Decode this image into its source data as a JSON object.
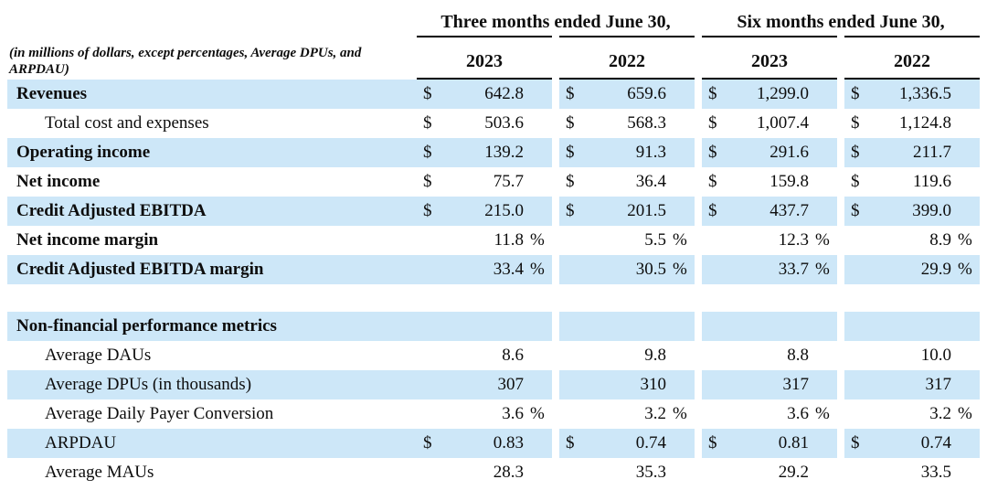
{
  "table": {
    "unit_note": "(in millions of dollars, except percentages, Average DPUs, and ARPDAU)",
    "col_groups": [
      {
        "label": "Three months ended June 30,"
      },
      {
        "label": "Six months ended June 30,"
      }
    ],
    "year_columns": [
      "2023",
      "2022",
      "2023",
      "2022"
    ],
    "rows": [
      {
        "label": "Revenues",
        "bold": true,
        "shaded": true,
        "prefix": "$",
        "values": [
          "642.8",
          "659.6",
          "1,299.0",
          "1,336.5"
        ]
      },
      {
        "label": "Total cost and expenses",
        "indent": true,
        "prefix": "$",
        "values": [
          "503.6",
          "568.3",
          "1,007.4",
          "1,124.8"
        ]
      },
      {
        "label": "Operating income",
        "bold": true,
        "shaded": true,
        "prefix": "$",
        "values": [
          "139.2",
          "91.3",
          "291.6",
          "211.7"
        ]
      },
      {
        "label": "Net income",
        "bold": true,
        "prefix": "$",
        "values": [
          "75.7",
          "36.4",
          "159.8",
          "119.6"
        ]
      },
      {
        "label": "Credit Adjusted EBITDA",
        "bold": true,
        "shaded": true,
        "prefix": "$",
        "values": [
          "215.0",
          "201.5",
          "437.7",
          "399.0"
        ]
      },
      {
        "label": "Net income margin",
        "bold": true,
        "suffix": "%",
        "values": [
          "11.8",
          "5.5",
          "12.3",
          "8.9"
        ]
      },
      {
        "label": "Credit Adjusted EBITDA margin",
        "bold": true,
        "shaded": true,
        "suffix": "%",
        "values": [
          "33.4",
          "30.5",
          "33.7",
          "29.9"
        ]
      },
      {
        "spacer": true
      },
      {
        "label": "Non-financial performance metrics",
        "bold": true,
        "shaded": true,
        "values": [
          "",
          "",
          "",
          ""
        ]
      },
      {
        "label": "Average DAUs",
        "indent": true,
        "values": [
          "8.6",
          "9.8",
          "8.8",
          "10.0"
        ]
      },
      {
        "label": "Average DPUs (in thousands)",
        "indent": true,
        "shaded": true,
        "values": [
          "307",
          "310",
          "317",
          "317"
        ]
      },
      {
        "label": "Average Daily Payer Conversion",
        "indent": true,
        "suffix": "%",
        "values": [
          "3.6",
          "3.2",
          "3.6",
          "3.2"
        ]
      },
      {
        "label": "ARPDAU",
        "indent": true,
        "shaded": true,
        "prefix": "$",
        "values": [
          "0.83",
          "0.74",
          "0.81",
          "0.74"
        ]
      },
      {
        "label": "Average MAUs",
        "indent": true,
        "values": [
          "28.3",
          "35.3",
          "29.2",
          "33.5"
        ]
      }
    ],
    "colors": {
      "stripe": "#cde7f8",
      "text": "#0d0d0d",
      "rule": "#000000"
    }
  }
}
